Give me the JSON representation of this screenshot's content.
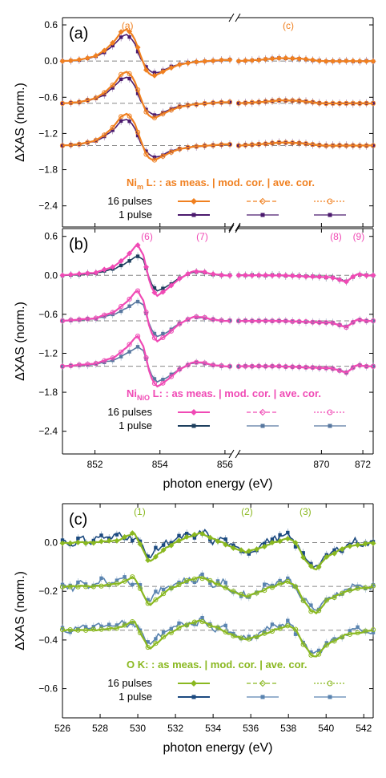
{
  "colors": {
    "nim16": "#f08020",
    "nim1": "#4b1a6e",
    "nio16": "#f04ab5",
    "nio1": "#1d3f5e",
    "nio1b": "#5878a0",
    "ok16": "#8ab820",
    "ok1": "#1c4a80",
    "ok1b": "#5a84b0",
    "axis": "#000000",
    "zero": "#888888"
  },
  "chart_data": [
    {
      "id": "a",
      "type": "line",
      "panel_label": "(a)",
      "ylabel": "ΔXAS (norm.)",
      "yticks": [
        "0.6",
        "0.0",
        "−0.6",
        "−1.2",
        "−1.8",
        "−2.4"
      ],
      "ylim": [
        -2.75,
        0.72
      ],
      "x_segments": [
        [
          851.0,
          856.15
        ],
        [
          866.0,
          872.5
        ]
      ],
      "peak_labels": [
        {
          "text": "(a)",
          "x": 853.0
        },
        {
          "text": "(c)",
          "x": 868.4
        }
      ],
      "legend": {
        "title_main": "Ni",
        "title_sub": "m",
        "title_rest": " L: :  as meas.  |  mod. cor.  |  ave. cor.",
        "rows": [
          "16 pulses",
          "1 pulse"
        ]
      },
      "offsets": [
        0,
        -0.7,
        -1.4
      ],
      "series": [
        {
          "key": "16",
          "x": [
            851.0,
            851.5,
            852.0,
            852.3,
            852.6,
            852.8,
            853.0,
            853.2,
            853.4,
            853.6,
            853.8,
            854.0,
            854.3,
            854.6,
            855.0,
            855.5,
            856.0,
            866.0,
            867.0,
            868.0,
            869.0,
            870.0,
            871.0,
            872.0,
            872.5
          ],
          "y": [
            0.0,
            0.02,
            0.08,
            0.18,
            0.33,
            0.48,
            0.53,
            0.4,
            0.1,
            -0.18,
            -0.25,
            -0.2,
            -0.12,
            -0.06,
            -0.02,
            0.0,
            0.02,
            0.0,
            0.02,
            0.05,
            0.04,
            0.0,
            0.0,
            0.0,
            0.0
          ]
        },
        {
          "key": "1",
          "x": [
            851.0,
            851.5,
            852.0,
            852.3,
            852.6,
            852.8,
            853.0,
            853.2,
            853.4,
            853.6,
            853.8,
            854.0,
            854.3,
            854.6,
            855.0,
            855.5,
            856.0,
            866.0,
            867.0,
            868.0,
            869.0,
            870.0,
            871.0,
            872.0,
            872.5
          ],
          "y": [
            0.0,
            0.02,
            0.07,
            0.15,
            0.28,
            0.4,
            0.44,
            0.32,
            0.05,
            -0.12,
            -0.2,
            -0.18,
            -0.1,
            -0.05,
            -0.02,
            0.0,
            0.02,
            0.0,
            0.02,
            0.05,
            0.04,
            0.0,
            0.0,
            0.0,
            0.0
          ]
        }
      ]
    },
    {
      "id": "b",
      "type": "line",
      "panel_label": "(b)",
      "ylabel": "ΔXAS (norm.)",
      "yticks": [
        "0.6",
        "0.0",
        "−0.6",
        "−1.2",
        "−1.8",
        "−2.4"
      ],
      "ylim": [
        -2.75,
        0.72
      ],
      "x_segments": [
        [
          851.0,
          856.15
        ],
        [
          866.0,
          872.5
        ]
      ],
      "xticks": [
        "852",
        "854",
        "856",
        "870",
        "872"
      ],
      "xlabel": "photon energy (eV)",
      "peak_labels": [
        {
          "text": "(6)",
          "x": 853.6
        },
        {
          "text": "(7)",
          "x": 855.3
        },
        {
          "text": "(8)",
          "x": 870.7
        },
        {
          "text": "(9)",
          "x": 871.8
        }
      ],
      "legend": {
        "title_main": "Ni",
        "title_sub": "NiO",
        "title_rest": " L: :  as meas.  |  mod. cor.  |  ave. cor.",
        "rows": [
          "16 pulses",
          "1 pulse"
        ]
      },
      "offsets": [
        0,
        -0.7,
        -1.4
      ],
      "series": [
        {
          "key": "16",
          "x": [
            851.0,
            852.0,
            852.6,
            853.0,
            853.3,
            853.5,
            853.7,
            853.9,
            854.2,
            854.6,
            855.0,
            855.3,
            855.6,
            856.0,
            866.0,
            868.0,
            869.5,
            870.5,
            871.2,
            871.7,
            872.2,
            872.5
          ],
          "y": [
            0.0,
            0.04,
            0.14,
            0.3,
            0.48,
            0.3,
            -0.15,
            -0.32,
            -0.22,
            -0.05,
            0.06,
            0.06,
            0.02,
            0.0,
            0.0,
            0.0,
            -0.02,
            -0.03,
            -0.1,
            0.02,
            0.0,
            0.0
          ]
        },
        {
          "key": "1",
          "x": [
            851.0,
            852.0,
            852.6,
            853.0,
            853.3,
            853.5,
            853.7,
            853.9,
            854.2,
            854.6,
            855.0,
            855.3,
            855.6,
            856.0,
            866.0,
            868.0,
            869.5,
            870.5,
            871.2,
            871.7,
            872.2,
            872.5
          ],
          "y": [
            0.0,
            0.03,
            0.1,
            0.2,
            0.3,
            0.24,
            -0.1,
            -0.24,
            -0.18,
            -0.04,
            0.05,
            0.05,
            0.02,
            0.0,
            0.0,
            0.0,
            -0.02,
            -0.03,
            -0.09,
            0.02,
            0.0,
            0.0
          ]
        }
      ]
    },
    {
      "id": "c",
      "type": "line",
      "panel_label": "(c)",
      "ylabel": "ΔXAS (norm.)",
      "yticks": [
        "0.0",
        "−0.2",
        "−0.4",
        "−0.6"
      ],
      "ylim": [
        -0.72,
        0.16
      ],
      "xlim": [
        526,
        542.5
      ],
      "xticks": [
        "526",
        "528",
        "530",
        "532",
        "534",
        "536",
        "538",
        "540",
        "542"
      ],
      "xlabel": "photon energy (eV)",
      "peak_labels": [
        {
          "text": "(1)",
          "x": 530.1
        },
        {
          "text": "(2)",
          "x": 535.8
        },
        {
          "text": "(3)",
          "x": 538.9
        }
      ],
      "legend": {
        "title_main": "O K: :",
        "title_rest": "  as meas.  |  mod. cor.  |  ave. cor.",
        "rows": [
          "16 pulses",
          "1 pulse"
        ]
      },
      "offsets": [
        0,
        -0.18,
        -0.36
      ],
      "series": [
        {
          "key": "16",
          "x": [
            526.0,
            527.5,
            529.0,
            529.8,
            530.2,
            530.6,
            531.5,
            532.5,
            533.3,
            534.2,
            535.0,
            535.8,
            536.5,
            537.2,
            538.0,
            538.4,
            538.8,
            539.2,
            539.5,
            540.0,
            541.0,
            542.5
          ],
          "y": [
            0.0,
            0.0,
            0.01,
            0.04,
            -0.02,
            -0.08,
            -0.02,
            0.02,
            0.04,
            0.01,
            -0.02,
            -0.04,
            -0.02,
            0.0,
            0.02,
            0.0,
            -0.06,
            -0.1,
            -0.11,
            -0.06,
            -0.02,
            0.0
          ]
        },
        {
          "key": "1",
          "x": [
            526.0,
            526.5,
            527.0,
            527.5,
            528.0,
            528.5,
            529.0,
            529.5,
            530.0,
            530.5,
            531.0,
            531.5,
            532.0,
            532.5,
            533.0,
            533.5,
            534.0,
            534.5,
            535.0,
            535.5,
            536.0,
            536.5,
            537.0,
            537.5,
            538.0,
            538.5,
            539.0,
            539.5,
            540.0,
            540.5,
            541.0,
            541.5,
            542.0,
            542.5
          ],
          "y": [
            0.01,
            -0.01,
            0.02,
            0.0,
            0.03,
            0.01,
            0.04,
            0.02,
            0.02,
            -0.06,
            -0.03,
            0.0,
            0.01,
            0.03,
            0.02,
            0.05,
            0.0,
            0.02,
            -0.02,
            -0.03,
            -0.04,
            -0.01,
            0.01,
            0.02,
            0.03,
            -0.02,
            -0.07,
            -0.1,
            -0.06,
            -0.03,
            -0.02,
            0.01,
            -0.01,
            0.0
          ]
        }
      ]
    }
  ]
}
